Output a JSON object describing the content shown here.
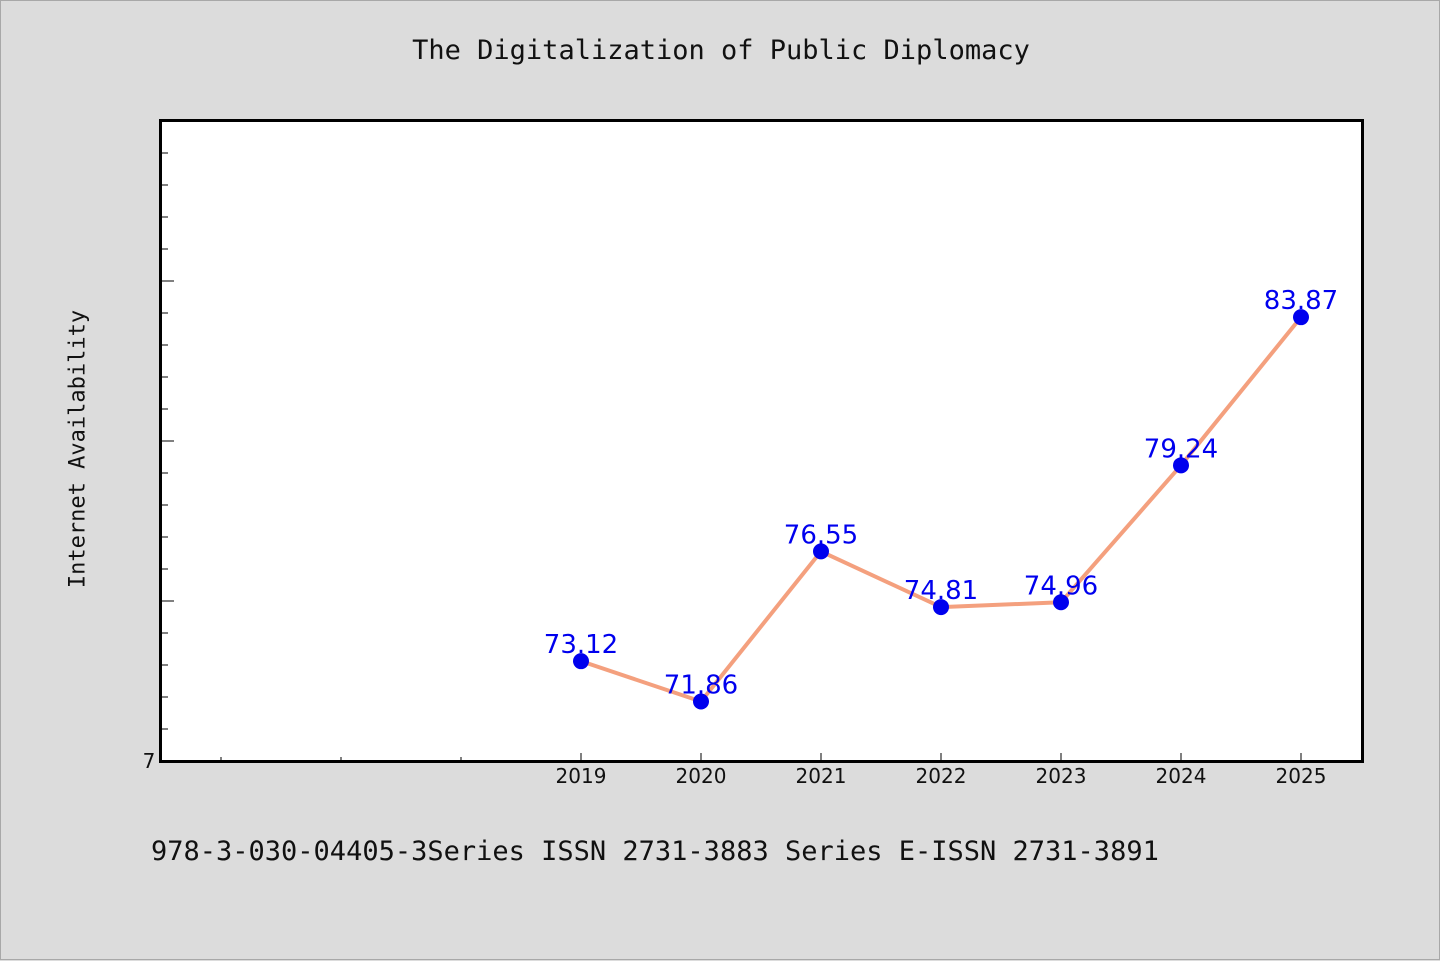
{
  "chart_data": {
    "type": "line",
    "title": "The Digitalization of Public Diplomacy",
    "xlabel": "",
    "ylabel": "Internet Availability",
    "categories": [
      "2019",
      "2020",
      "2021",
      "2022",
      "2023",
      "2024",
      "2025"
    ],
    "series": [
      {
        "values": [
          73.12,
          71.86,
          76.55,
          74.81,
          74.96,
          79.24,
          83.87
        ],
        "labels": [
          "73.12",
          "71.86",
          "76.55",
          "74.81",
          "74.96",
          "79.24",
          "83.87"
        ]
      }
    ],
    "ylim": [
      70,
      90
    ],
    "y_origin_label": "7",
    "grid": false,
    "legend": "none",
    "colors": {
      "line": "#f4a07e",
      "marker": "#0000ee",
      "data_label": "#0000ee",
      "plot_background": "#ffffff",
      "page_background": "#dcdcdc"
    }
  },
  "footer": {
    "text": "978-3-030-04405-3Series ISSN 2731-3883 Series E-ISSN 2731-3891"
  }
}
